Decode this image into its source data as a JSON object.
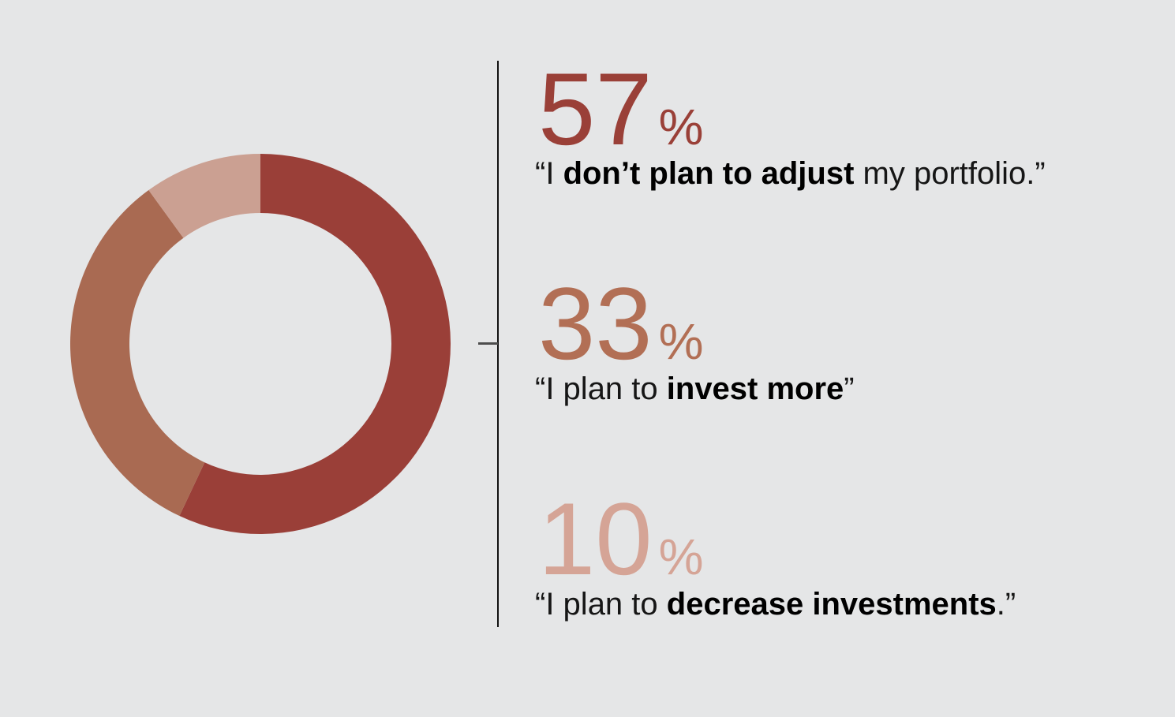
{
  "background_color": "#e5e6e7",
  "chart_data": {
    "type": "donut",
    "title": "",
    "values_unit": "%",
    "start_angle_deg": 0,
    "direction": "clockwise",
    "inner_radius_ratio": 0.69,
    "legend_position": "right",
    "series": [
      {
        "label": "I don’t plan to adjust my portfolio.",
        "value": 57,
        "color": "#9a3f38"
      },
      {
        "label": "I plan to invest more",
        "value": 33,
        "color": "#a96a52"
      },
      {
        "label": "I plan to decrease investments.",
        "value": 10,
        "color": "#cba092"
      }
    ]
  },
  "divider": {
    "line_color": "#111111",
    "tick_color": "#4d4d4d"
  },
  "callouts": [
    {
      "value": "57",
      "unit": "%",
      "number_color": "#9a4038",
      "quote_open": "“",
      "text_pre": "I ",
      "text_bold": "don’t plan to adjust",
      "text_post": " my portfolio.",
      "quote_close": "”",
      "text_color": "#161616"
    },
    {
      "value": "33",
      "unit": "%",
      "number_color": "#b26f55",
      "quote_open": "“",
      "text_pre": "I plan to ",
      "text_bold": "invest more",
      "text_post": "",
      "quote_close": "”",
      "text_color": "#161616"
    },
    {
      "value": "10",
      "unit": "%",
      "number_color": "#d5a496",
      "quote_open": "“",
      "text_pre": "I plan to ",
      "text_bold": "decrease investments",
      "text_post": ".",
      "quote_close": "”",
      "text_color": "#161616"
    }
  ]
}
